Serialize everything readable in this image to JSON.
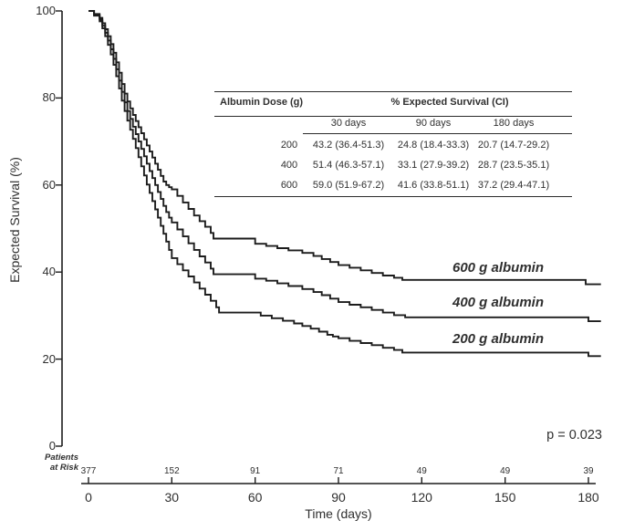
{
  "colors": {
    "line": "#1c1c1c",
    "axis": "#1c1c1c",
    "text": "#2f2f2f",
    "background": "#ffffff"
  },
  "chart_data": {
    "type": "line",
    "variant": "kaplan_meier_step",
    "title": "",
    "xlabel": "Time (days)",
    "ylabel": "Expected Survival (%)",
    "xlim": [
      0,
      184.5
    ],
    "ylim": [
      0,
      100
    ],
    "x_ticks": [
      0,
      30,
      60,
      90,
      120,
      150,
      180
    ],
    "y_ticks": [
      100,
      80,
      60,
      40,
      20,
      0
    ],
    "grid": false,
    "legend_position": "inline-labels-right",
    "p_value_label": "p = 0.023",
    "series": [
      {
        "name": "600 g albumin",
        "label": "600 g albumin",
        "points": [
          [
            0,
            100
          ],
          [
            2,
            99.3
          ],
          [
            4,
            98.4
          ],
          [
            5,
            97.2
          ],
          [
            6,
            95.8
          ],
          [
            7,
            94.2
          ],
          [
            8,
            92.4
          ],
          [
            9,
            90.4
          ],
          [
            10,
            88.2
          ],
          [
            11,
            85.8
          ],
          [
            12,
            83.2
          ],
          [
            13,
            81
          ],
          [
            14,
            79.2
          ],
          [
            15,
            77.6
          ],
          [
            16,
            76.1
          ],
          [
            17,
            74.7
          ],
          [
            18,
            73.3
          ],
          [
            19,
            71.9
          ],
          [
            20,
            70.5
          ],
          [
            21,
            69.1
          ],
          [
            22,
            67.7
          ],
          [
            23,
            66.3
          ],
          [
            24,
            64.9
          ],
          [
            25,
            63.5
          ],
          [
            26,
            62.1
          ],
          [
            27,
            60.8
          ],
          [
            28,
            60
          ],
          [
            29,
            59.5
          ],
          [
            30,
            59
          ],
          [
            32,
            57.5
          ],
          [
            34,
            56
          ],
          [
            36,
            54.5
          ],
          [
            38,
            53
          ],
          [
            40,
            51.7
          ],
          [
            42,
            50.4
          ],
          [
            44,
            49
          ],
          [
            45,
            47.7
          ],
          [
            60,
            46.5
          ],
          [
            64,
            46
          ],
          [
            68,
            45.5
          ],
          [
            72,
            45
          ],
          [
            77,
            44.4
          ],
          [
            81,
            43.7
          ],
          [
            84,
            43
          ],
          [
            87,
            42.3
          ],
          [
            90,
            41.6
          ],
          [
            94,
            41
          ],
          [
            98,
            40.4
          ],
          [
            102,
            39.8
          ],
          [
            106,
            39.2
          ],
          [
            110,
            38.7
          ],
          [
            113,
            38.2
          ],
          [
            179,
            37.2
          ],
          [
            184.5,
            37.2
          ]
        ]
      },
      {
        "name": "400 g albumin",
        "label": "400 g albumin",
        "points": [
          [
            0,
            100
          ],
          [
            2,
            99.1
          ],
          [
            4,
            98
          ],
          [
            5,
            96.6
          ],
          [
            6,
            95
          ],
          [
            7,
            93.2
          ],
          [
            8,
            91.2
          ],
          [
            9,
            89
          ],
          [
            10,
            86.6
          ],
          [
            11,
            84
          ],
          [
            12,
            81.4
          ],
          [
            13,
            79
          ],
          [
            14,
            77
          ],
          [
            15,
            75.2
          ],
          [
            16,
            73.4
          ],
          [
            17,
            71.7
          ],
          [
            18,
            70
          ],
          [
            19,
            68.3
          ],
          [
            20,
            66.6
          ],
          [
            21,
            64.9
          ],
          [
            22,
            63.2
          ],
          [
            23,
            61.6
          ],
          [
            24,
            60
          ],
          [
            25,
            58.4
          ],
          [
            26,
            56.8
          ],
          [
            27,
            55.2
          ],
          [
            28,
            53.8
          ],
          [
            29,
            52.5
          ],
          [
            30,
            51.4
          ],
          [
            32,
            49.8
          ],
          [
            34,
            48.2
          ],
          [
            36,
            46.6
          ],
          [
            38,
            45.1
          ],
          [
            40,
            43.6
          ],
          [
            42,
            42.2
          ],
          [
            44,
            40.8
          ],
          [
            45,
            39.5
          ],
          [
            60,
            38.5
          ],
          [
            64,
            38
          ],
          [
            68,
            37.4
          ],
          [
            72,
            36.8
          ],
          [
            77,
            36.1
          ],
          [
            81,
            35.4
          ],
          [
            84,
            34.7
          ],
          [
            87,
            33.9
          ],
          [
            90,
            33.1
          ],
          [
            94,
            32.5
          ],
          [
            98,
            31.9
          ],
          [
            102,
            31.3
          ],
          [
            106,
            30.7
          ],
          [
            110,
            30.1
          ],
          [
            114,
            29.6
          ],
          [
            180,
            28.7
          ],
          [
            184.5,
            28.7
          ]
        ]
      },
      {
        "name": "200 g albumin",
        "label": "200 g albumin",
        "points": [
          [
            0,
            100
          ],
          [
            2,
            98.9
          ],
          [
            4,
            97.6
          ],
          [
            5,
            96
          ],
          [
            6,
            94.2
          ],
          [
            7,
            92.2
          ],
          [
            8,
            90
          ],
          [
            9,
            87.6
          ],
          [
            10,
            85
          ],
          [
            11,
            82.2
          ],
          [
            12,
            79.4
          ],
          [
            13,
            77
          ],
          [
            14,
            74.8
          ],
          [
            15,
            72.7
          ],
          [
            16,
            70.6
          ],
          [
            17,
            68.5
          ],
          [
            18,
            66.4
          ],
          [
            19,
            64.3
          ],
          [
            20,
            62.2
          ],
          [
            21,
            60.1
          ],
          [
            22,
            58.2
          ],
          [
            23,
            56.3
          ],
          [
            24,
            54.4
          ],
          [
            25,
            52.5
          ],
          [
            26,
            50.6
          ],
          [
            27,
            48.8
          ],
          [
            28,
            47
          ],
          [
            29,
            45.1
          ],
          [
            30,
            43.2
          ],
          [
            32,
            41.8
          ],
          [
            34,
            40.4
          ],
          [
            36,
            39
          ],
          [
            38,
            37.6
          ],
          [
            40,
            36.2
          ],
          [
            42,
            34.8
          ],
          [
            44,
            33.4
          ],
          [
            46,
            31.9
          ],
          [
            47,
            30.7
          ],
          [
            62,
            30
          ],
          [
            66,
            29.4
          ],
          [
            70,
            28.8
          ],
          [
            74,
            28.2
          ],
          [
            77,
            27.6
          ],
          [
            80,
            27
          ],
          [
            83,
            26.3
          ],
          [
            86,
            25.6
          ],
          [
            88,
            25.2
          ],
          [
            90,
            24.8
          ],
          [
            94,
            24.2
          ],
          [
            98,
            23.7
          ],
          [
            102,
            23.2
          ],
          [
            106,
            22.6
          ],
          [
            110,
            22.1
          ],
          [
            113,
            21.5
          ],
          [
            180,
            20.7
          ],
          [
            184.5,
            20.7
          ]
        ]
      }
    ],
    "patients_at_risk": {
      "label_line1": "Patients",
      "label_line2": "at Risk",
      "times": [
        0,
        30,
        60,
        90,
        120,
        150,
        180
      ],
      "counts": [
        "377",
        "152",
        "91",
        "71",
        "49",
        "49",
        "39"
      ]
    },
    "summary_table": {
      "col1_header": "Albumin Dose (g)",
      "col2_header": "% Expected Survival (CI)",
      "sub_headers": [
        "30 days",
        "90 days",
        "180 days"
      ],
      "rows": [
        {
          "dose": "200",
          "values": [
            "43.2 (36.4-51.3)",
            "24.8 (18.4-33.3)",
            "20.7 (14.7-29.2)"
          ]
        },
        {
          "dose": "400",
          "values": [
            "51.4 (46.3-57.1)",
            "33.1 (27.9-39.2)",
            "28.7 (23.5-35.1)"
          ]
        },
        {
          "dose": "600",
          "values": [
            "59.0 (51.9-67.2)",
            "41.6 (33.8-51.1)",
            "37.2 (29.4-47.1)"
          ]
        }
      ]
    }
  }
}
